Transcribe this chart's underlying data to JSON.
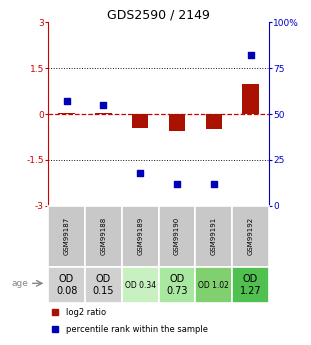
{
  "title": "GDS2590 / 2149",
  "samples": [
    "GSM99187",
    "GSM99188",
    "GSM99189",
    "GSM99190",
    "GSM99191",
    "GSM99192"
  ],
  "log2_ratio": [
    0.02,
    0.02,
    -0.45,
    -0.55,
    -0.5,
    1.0
  ],
  "percentile_rank": [
    57,
    55,
    18,
    12,
    12,
    82
  ],
  "ylim_left": [
    -3,
    3
  ],
  "ylim_right": [
    0,
    100
  ],
  "yticks_left": [
    -3,
    -1.5,
    0,
    1.5,
    3
  ],
  "yticks_right": [
    0,
    25,
    50,
    75,
    100
  ],
  "ytick_labels_left": [
    "-3",
    "-1.5",
    "0",
    "1.5",
    "3"
  ],
  "ytick_labels_right": [
    "0",
    "25",
    "50",
    "75",
    "100%"
  ],
  "bar_color": "#aa1100",
  "dot_color": "#0000bb",
  "zero_line_color": "#cc0000",
  "hline_color": "#111111",
  "age_labels": [
    "OD\n0.08",
    "OD\n0.15",
    "OD 0.34",
    "OD\n0.73",
    "OD 1.02",
    "OD\n1.27"
  ],
  "age_bg_colors": [
    "#d0d0d0",
    "#d0d0d0",
    "#c8f0c0",
    "#a8e8a0",
    "#80d070",
    "#50c050"
  ],
  "age_fontsize": [
    7,
    7,
    5.5,
    7,
    5.5,
    7
  ],
  "sample_bg_color": "#c8c8c8",
  "legend_items": [
    "log2 ratio",
    "percentile rank within the sample"
  ],
  "legend_colors": [
    "#aa1100",
    "#0000bb"
  ],
  "axis_color_left": "#cc0000",
  "axis_color_right": "#0000cc"
}
